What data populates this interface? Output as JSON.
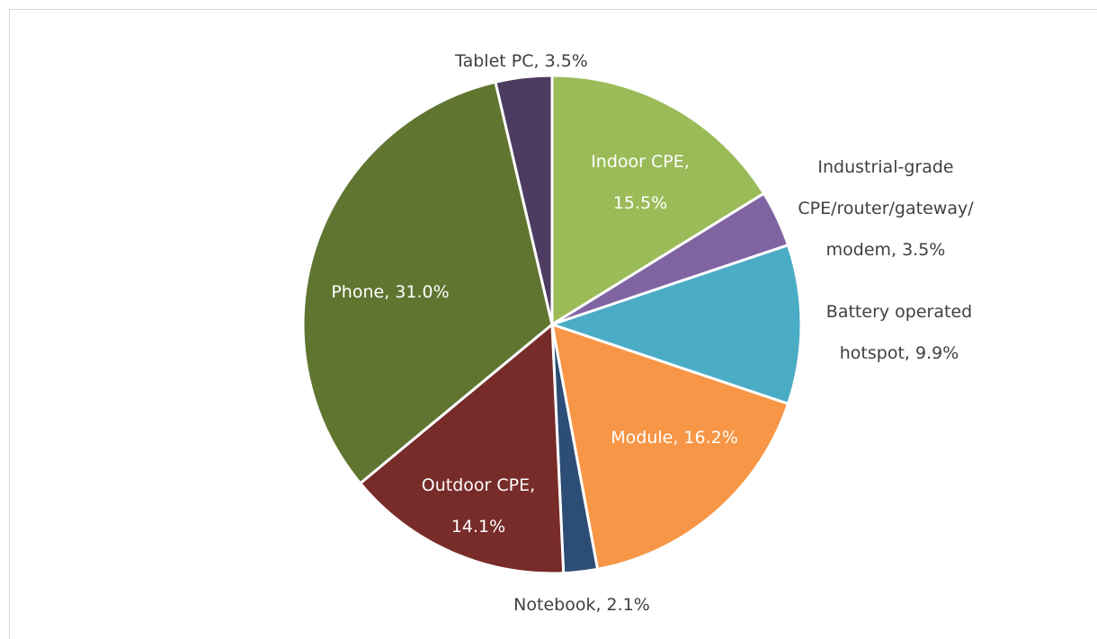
{
  "chart_data": {
    "type": "pie",
    "values": [
      15.5,
      3.5,
      9.9,
      16.2,
      2.1,
      14.1,
      31.0,
      3.5
    ],
    "value_labels": [
      "Indoor CPE, 15.5%",
      "Industrial-grade CPE/router/gateway/modem, 3.5%",
      "Battery operated hotspot, 9.9%",
      "Module, 16.2%",
      "Notebook, 2.1%",
      "Outdoor CPE, 14.1%",
      "Phone, 31.0%",
      "Tablet PC, 3.5%"
    ],
    "colors": [
      "#9bbb59",
      "#8064a2",
      "#4bacc6",
      "#f79646",
      "#2c4d75",
      "#772c2a",
      "#5f7530",
      "#4d3b62"
    ]
  }
}
